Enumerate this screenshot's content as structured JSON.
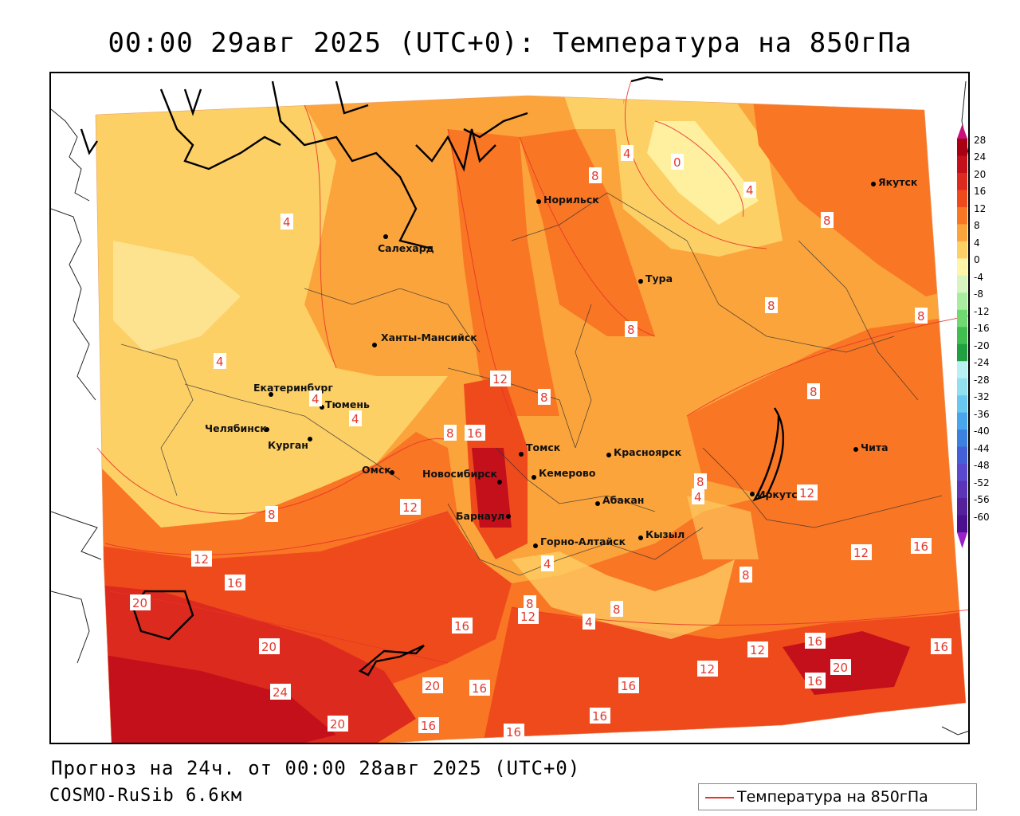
{
  "title": "00:00 29авг 2025 (UTC+0): Температура на 850гПа",
  "footer": {
    "forecast": "Прогноз на 24ч. от 00:00 28авг 2025 (UTC+0)",
    "model": "COSMO-RuSib 6.6км"
  },
  "legend": {
    "label": "Температура на 850гПа",
    "color": "#e8322a"
  },
  "colorbar": {
    "labels": [
      "28",
      "24",
      "20",
      "16",
      "12",
      "8",
      "4",
      "0",
      "-4",
      "-8",
      "-12",
      "-16",
      "-20",
      "-24",
      "-28",
      "-32",
      "-36",
      "-40",
      "-44",
      "-48",
      "-52",
      "-56",
      "-60"
    ],
    "colors": [
      "#a80012",
      "#c4101a",
      "#dc2a1e",
      "#ef4a1c",
      "#f97624",
      "#fba43c",
      "#fdd066",
      "#fff4a8",
      "#d6f5c0",
      "#a8eca0",
      "#70d870",
      "#40bf50",
      "#20a040",
      "#b8f0f4",
      "#90e0f0",
      "#68c8f0",
      "#4aa6ec",
      "#3c80e0",
      "#4460d8",
      "#5a48d0",
      "#5c34b8",
      "#54209c",
      "#4a1090"
    ]
  },
  "cities": [
    {
      "name": "Салехард"
    },
    {
      "name": "Норильск"
    },
    {
      "name": "Тура"
    },
    {
      "name": "Якутск"
    },
    {
      "name": "Ханты-Мансийск"
    },
    {
      "name": "Екатеринбург"
    },
    {
      "name": "Тюмень"
    },
    {
      "name": "Челябинск"
    },
    {
      "name": "Курган"
    },
    {
      "name": "Омск"
    },
    {
      "name": "Новосибирск"
    },
    {
      "name": "Томск"
    },
    {
      "name": "Кемерово"
    },
    {
      "name": "Барнаул"
    },
    {
      "name": "Красноярск"
    },
    {
      "name": "Абакан"
    },
    {
      "name": "Горно-Алтайск"
    },
    {
      "name": "Кызыл"
    },
    {
      "name": "Иркутск"
    },
    {
      "name": "Чита"
    }
  ],
  "isotherm_labels": [
    "4",
    "8",
    "0",
    "4",
    "8",
    "4",
    "8",
    "8",
    "4",
    "4",
    "4",
    "12",
    "8",
    "8",
    "16",
    "8",
    "8",
    "4",
    "8",
    "12",
    "8",
    "12",
    "16",
    "20",
    "12",
    "4",
    "8",
    "16",
    "12",
    "4",
    "8",
    "8",
    "12",
    "16",
    "20",
    "24",
    "20",
    "16",
    "20",
    "16",
    "16",
    "16",
    "12",
    "16",
    "12",
    "16",
    "20",
    "16",
    "16"
  ]
}
